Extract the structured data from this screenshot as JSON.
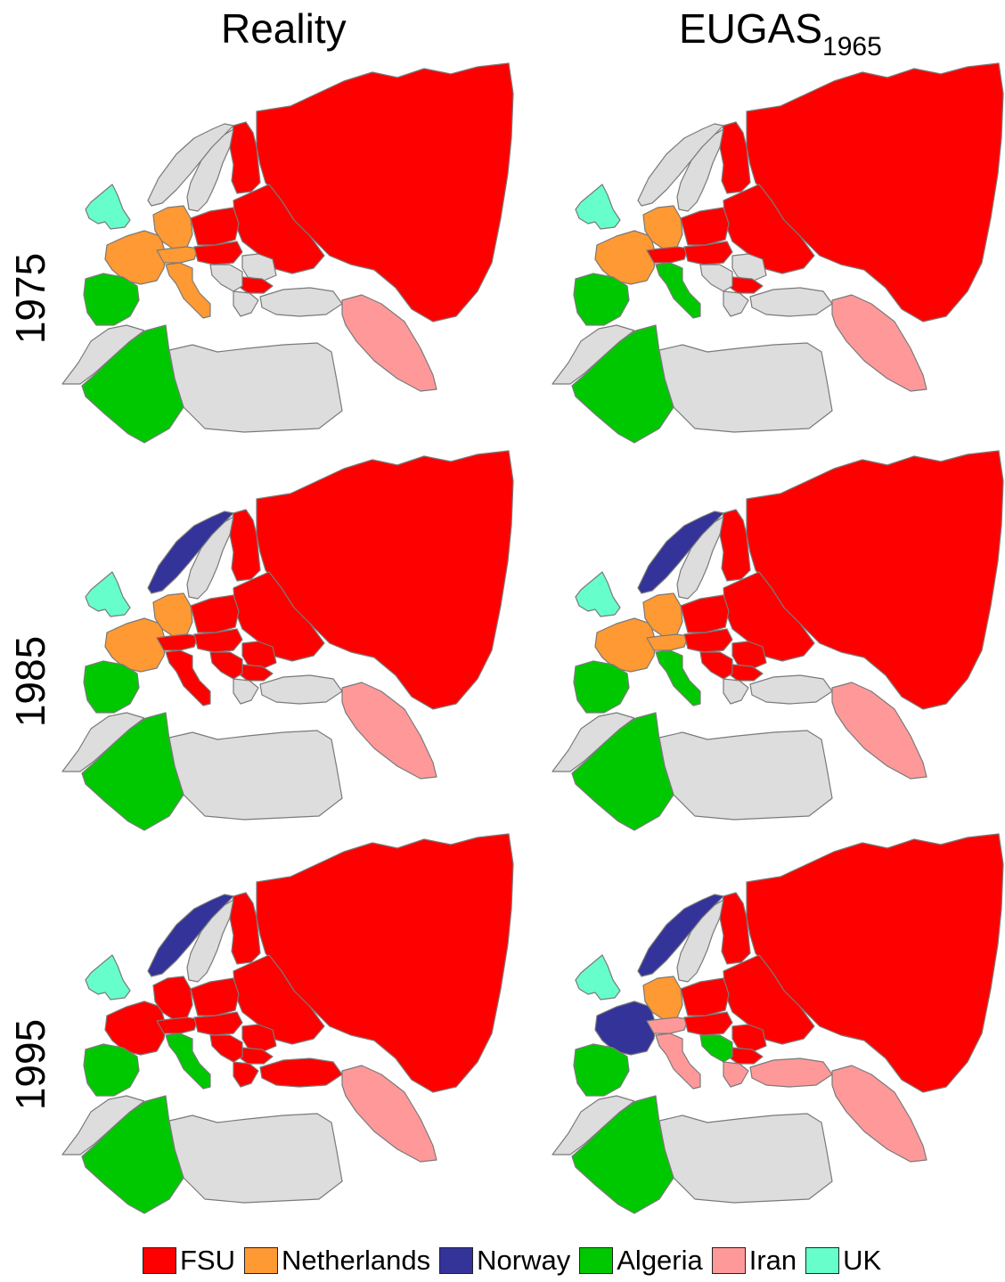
{
  "columns": [
    {
      "title": "Reality",
      "subscript": ""
    },
    {
      "title": "EUGAS",
      "subscript": "1965"
    }
  ],
  "rows": [
    "1975",
    "1985",
    "1995"
  ],
  "legend": [
    {
      "label": "FSU",
      "color": "#ff0000"
    },
    {
      "label": "Netherlands",
      "color": "#ff9933"
    },
    {
      "label": "Norway",
      "color": "#333399"
    },
    {
      "label": "Algeria",
      "color": "#00c800"
    },
    {
      "label": "Iran",
      "color": "#ff9999"
    },
    {
      "label": "UK",
      "color": "#66ffcc"
    }
  ],
  "no_supplier_color": "#dddddd",
  "map_data": [
    {
      "row": "1975",
      "column": "Reality",
      "main_supplier": {
        "norway": "",
        "sweden": "",
        "finland": "FSU",
        "baltics_belarus_ukraine": "FSU",
        "russia": "FSU",
        "uk_ireland": "UK",
        "france": "Netherlands",
        "germany_benelux": "Netherlands",
        "alps": "Netherlands",
        "poland_czech": "FSU",
        "austria_hungary": "FSU",
        "italy": "Netherlands",
        "iberia": "Algeria",
        "balkans": "",
        "bulgaria": "FSU",
        "romania": "",
        "greece": "",
        "turkey": "",
        "iran": "Iran",
        "north_africa_west": "",
        "algeria": "Algeria",
        "libya_egypt": ""
      }
    },
    {
      "row": "1975",
      "column": "EUGAS1965",
      "main_supplier": {
        "norway": "",
        "sweden": "",
        "finland": "FSU",
        "baltics_belarus_ukraine": "FSU",
        "russia": "FSU",
        "uk_ireland": "UK",
        "france": "Netherlands",
        "germany_benelux": "Netherlands",
        "alps": "FSU",
        "poland_czech": "FSU",
        "austria_hungary": "FSU",
        "italy": "Algeria",
        "iberia": "Algeria",
        "balkans": "",
        "bulgaria": "FSU",
        "romania": "",
        "greece": "",
        "turkey": "",
        "iran": "Iran",
        "north_africa_west": "",
        "algeria": "Algeria",
        "libya_egypt": ""
      }
    },
    {
      "row": "1985",
      "column": "Reality",
      "main_supplier": {
        "norway": "Norway",
        "sweden": "",
        "finland": "FSU",
        "baltics_belarus_ukraine": "FSU",
        "russia": "FSU",
        "uk_ireland": "UK",
        "france": "Netherlands",
        "germany_benelux": "Netherlands",
        "alps": "FSU",
        "poland_czech": "FSU",
        "austria_hungary": "FSU",
        "italy": "FSU",
        "iberia": "Algeria",
        "balkans": "FSU",
        "bulgaria": "FSU",
        "romania": "FSU",
        "greece": "",
        "turkey": "",
        "iran": "Iran",
        "north_africa_west": "",
        "algeria": "Algeria",
        "libya_egypt": ""
      }
    },
    {
      "row": "1985",
      "column": "EUGAS1965",
      "main_supplier": {
        "norway": "Norway",
        "sweden": "",
        "finland": "FSU",
        "baltics_belarus_ukraine": "FSU",
        "russia": "FSU",
        "uk_ireland": "UK",
        "france": "Netherlands",
        "germany_benelux": "Netherlands",
        "alps": "Netherlands",
        "poland_czech": "FSU",
        "austria_hungary": "FSU",
        "italy": "Algeria",
        "iberia": "Algeria",
        "balkans": "FSU",
        "bulgaria": "FSU",
        "romania": "FSU",
        "greece": "",
        "turkey": "",
        "iran": "Iran",
        "north_africa_west": "",
        "algeria": "Algeria",
        "libya_egypt": ""
      }
    },
    {
      "row": "1995",
      "column": "Reality",
      "main_supplier": {
        "norway": "Norway",
        "sweden": "",
        "finland": "FSU",
        "baltics_belarus_ukraine": "FSU",
        "russia": "FSU",
        "uk_ireland": "UK",
        "france": "FSU",
        "germany_benelux": "FSU",
        "alps": "FSU",
        "poland_czech": "FSU",
        "austria_hungary": "FSU",
        "italy": "Algeria",
        "iberia": "Algeria",
        "balkans": "FSU",
        "bulgaria": "FSU",
        "romania": "FSU",
        "greece": "FSU",
        "turkey": "FSU",
        "iran": "Iran",
        "north_africa_west": "",
        "algeria": "Algeria",
        "libya_egypt": ""
      }
    },
    {
      "row": "1995",
      "column": "EUGAS1965",
      "main_supplier": {
        "norway": "Norway",
        "sweden": "",
        "finland": "FSU",
        "baltics_belarus_ukraine": "FSU",
        "russia": "FSU",
        "uk_ireland": "UK",
        "france": "Norway",
        "germany_benelux": "Netherlands",
        "alps": "Iran",
        "poland_czech": "FSU",
        "austria_hungary": "FSU",
        "italy": "Iran",
        "iberia": "Algeria",
        "balkans": "Algeria",
        "bulgaria": "FSU",
        "romania": "FSU",
        "greece": "Iran",
        "turkey": "Iran",
        "iran": "Iran",
        "north_africa_west": "",
        "algeria": "Algeria",
        "libya_egypt": ""
      }
    }
  ]
}
